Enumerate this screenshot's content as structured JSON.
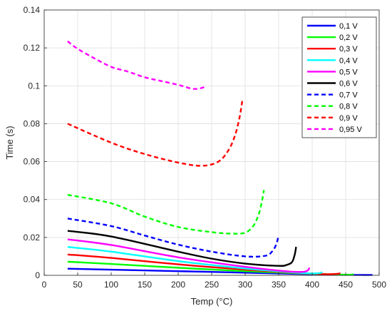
{
  "chart_data": {
    "type": "line",
    "title": "",
    "xlabel": "Temp (°C)",
    "ylabel": "Time (s)",
    "xlim": [
      0,
      500
    ],
    "ylim": [
      0,
      0.14
    ],
    "x_ticks": [
      0,
      50,
      100,
      150,
      200,
      250,
      300,
      350,
      400,
      450,
      500
    ],
    "x_tick_labels": [
      "0",
      "50",
      "100",
      "150",
      "200",
      "250",
      "300",
      "350",
      "400",
      "450",
      "500"
    ],
    "y_ticks": [
      0,
      0.02,
      0.04,
      0.06,
      0.08,
      0.1,
      0.12,
      0.14
    ],
    "y_tick_labels": [
      "0",
      "0.02",
      "0.04",
      "0.06",
      "0.08",
      "0.1",
      "0.12",
      "0.14"
    ],
    "grid": true,
    "legend_position": "top-right",
    "series": [
      {
        "name": "0,1 V",
        "color": "#0000ff",
        "style": "solid",
        "x": [
          35,
          100,
          200,
          300,
          400,
          450,
          470,
          490
        ],
        "y": [
          0.0035,
          0.003,
          0.0022,
          0.0014,
          0.0006,
          0.0003,
          0.0002,
          0.0002
        ]
      },
      {
        "name": "0,2 V",
        "color": "#00ff00",
        "style": "solid",
        "x": [
          35,
          100,
          200,
          300,
          400,
          440,
          455,
          462
        ],
        "y": [
          0.0072,
          0.006,
          0.004,
          0.0022,
          0.0008,
          0.0004,
          0.0003,
          0.0005
        ]
      },
      {
        "name": "0,3 V",
        "color": "#ff0000",
        "style": "solid",
        "x": [
          35,
          100,
          200,
          300,
          380,
          420,
          438,
          442
        ],
        "y": [
          0.011,
          0.0092,
          0.0058,
          0.003,
          0.0012,
          0.0006,
          0.0008,
          0.0012
        ]
      },
      {
        "name": "0,4 V",
        "color": "#00ffff",
        "style": "solid",
        "x": [
          35,
          100,
          200,
          300,
          370,
          400,
          412,
          415
        ],
        "y": [
          0.015,
          0.0125,
          0.0075,
          0.0036,
          0.0016,
          0.001,
          0.0012,
          0.0018
        ]
      },
      {
        "name": "0,5 V",
        "color": "#ff00ff",
        "style": "solid",
        "x": [
          35,
          100,
          200,
          300,
          360,
          385,
          393,
          396
        ],
        "y": [
          0.019,
          0.016,
          0.0095,
          0.0045,
          0.0022,
          0.0018,
          0.0025,
          0.004
        ]
      },
      {
        "name": "0,6 V",
        "color": "#000000",
        "style": "solid",
        "x": [
          35,
          100,
          200,
          250,
          300,
          350,
          362,
          370,
          374,
          376
        ],
        "y": [
          0.0235,
          0.0205,
          0.0125,
          0.0088,
          0.0062,
          0.005,
          0.0055,
          0.007,
          0.011,
          0.015
        ]
      },
      {
        "name": "0,7 V",
        "color": "#0000ff",
        "style": "dashed",
        "x": [
          35,
          100,
          150,
          200,
          250,
          300,
          330,
          340,
          346,
          350
        ],
        "y": [
          0.03,
          0.026,
          0.021,
          0.0162,
          0.0125,
          0.01,
          0.0103,
          0.0125,
          0.016,
          0.021
        ]
      },
      {
        "name": "0,8 V",
        "color": "#00ff00",
        "style": "dashed",
        "x": [
          35,
          100,
          150,
          200,
          250,
          280,
          300,
          312,
          320,
          325,
          328
        ],
        "y": [
          0.0425,
          0.038,
          0.031,
          0.0255,
          0.0228,
          0.022,
          0.0225,
          0.026,
          0.032,
          0.039,
          0.045
        ]
      },
      {
        "name": "0,9 V",
        "color": "#ff0000",
        "style": "dashed",
        "x": [
          35,
          100,
          150,
          200,
          235,
          260,
          275,
          285,
          292,
          296
        ],
        "y": [
          0.08,
          0.07,
          0.064,
          0.0595,
          0.0578,
          0.06,
          0.066,
          0.074,
          0.084,
          0.093
        ]
      },
      {
        "name": "0,95 V",
        "color": "#ff00ff",
        "style": "dashed",
        "x": [
          35,
          50,
          75,
          100,
          125,
          150,
          175,
          200,
          220,
          230,
          238,
          242
        ],
        "y": [
          0.1235,
          0.1195,
          0.1145,
          0.11,
          0.1075,
          0.1045,
          0.1025,
          0.1005,
          0.0985,
          0.0985,
          0.0992,
          0.1002
        ]
      }
    ]
  }
}
